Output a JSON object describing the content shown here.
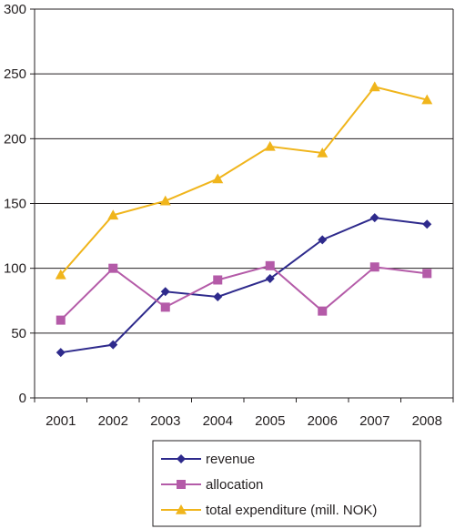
{
  "chart_data": {
    "type": "line",
    "title": "",
    "xlabel": "",
    "ylabel": "",
    "categories": [
      "2001",
      "2002",
      "2003",
      "2004",
      "2005",
      "2006",
      "2007",
      "2008"
    ],
    "ylim": [
      0,
      300
    ],
    "yticks": [
      0,
      50,
      100,
      150,
      200,
      250,
      300
    ],
    "grid": "horizontal",
    "legend_position": "bottom",
    "series": [
      {
        "name": "revenue",
        "color": "#2e2a8c",
        "marker": "diamond",
        "values": [
          35,
          41,
          82,
          78,
          92,
          122,
          139,
          134
        ]
      },
      {
        "name": "allocation",
        "color": "#b45ba8",
        "marker": "square",
        "values": [
          60,
          100,
          70,
          91,
          102,
          67,
          101,
          96
        ]
      },
      {
        "name": "total expenditure (mill. NOK)",
        "color": "#f0b51c",
        "marker": "triangle",
        "values": [
          95,
          141,
          152,
          169,
          194,
          189,
          240,
          230
        ]
      }
    ]
  }
}
